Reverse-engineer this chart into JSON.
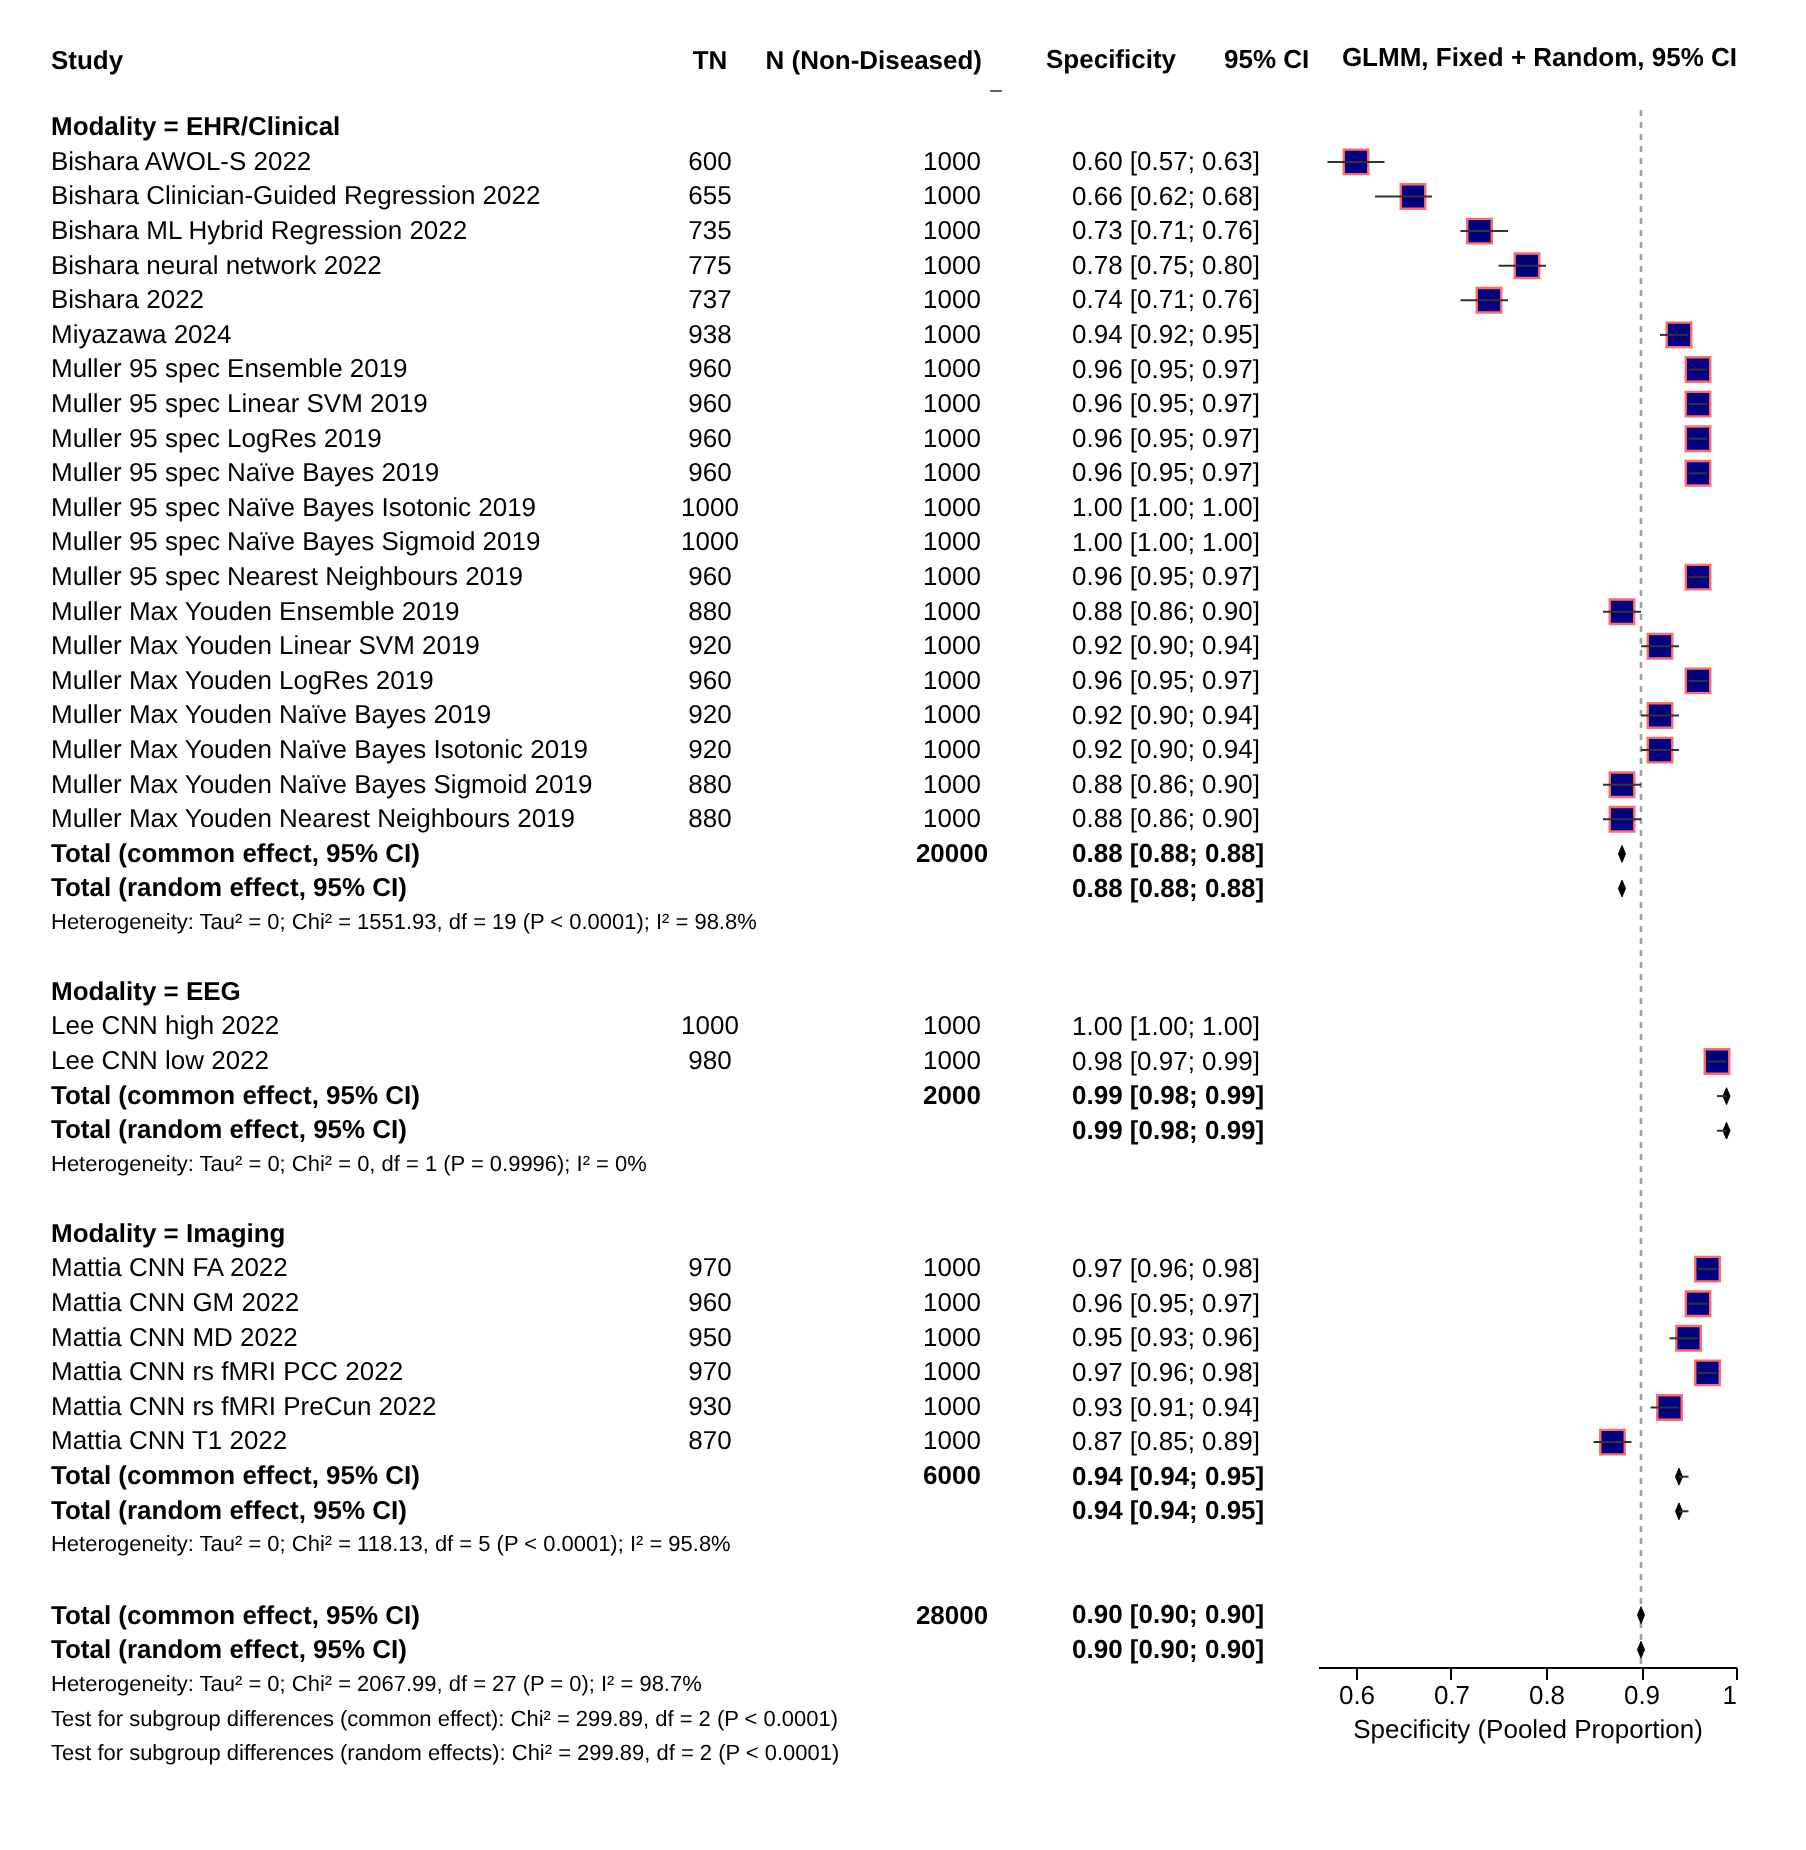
{
  "chart_data": [
    {
      "type": "heatmap",
      "data_labels": true,
      "ylabel": "Study",
      "categories": [
        "TN",
        "N (Non-Diseased)"
      ],
      "y_categories": [
        "Modality = EHR/Clinical",
        "Bishara AWOL-S 2022",
        "Bishara Clinician-Guided Regression 2022",
        "Bishara ML Hybrid Regression 2022",
        "Bishara neural network 2022",
        "Bishara 2022",
        "Miyazawa 2024",
        "Muller 95 spec Ensemble 2019",
        "Muller 95 spec Linear SVM 2019",
        "Muller 95 spec LogRes 2019",
        "Muller 95 spec Naïve Bayes 2019",
        "Muller 95 spec Naïve Bayes Isotonic 2019",
        "Muller 95 spec Naïve Bayes Sigmoid 2019",
        "Muller 95 spec Nearest Neighbours 2019",
        "Muller Max Youden Ensemble 2019",
        "Muller Max Youden Linear SVM 2019",
        "Muller Max Youden LogRes 2019",
        "Muller Max Youden Naïve Bayes 2019",
        "Muller Max Youden Naïve Bayes Isotonic 2019",
        "Muller Max Youden Naïve Bayes Sigmoid 2019",
        "Muller Max Youden Nearest Neighbours 2019",
        "Total (common effect, 95% CI)",
        "Total (random effect, 95% CI)",
        "Heterogeneity: Tau² = 0; Chi² = 1551.93, df = 19 (P < 0.0001); I² = 98.8%"
      ],
      "cells": [
        [
          null,
          null
        ],
        [
          600,
          1000
        ],
        [
          655,
          1000
        ],
        [
          735,
          1000
        ],
        [
          775,
          1000
        ],
        [
          737,
          1000
        ],
        [
          938,
          1000
        ],
        [
          960,
          1000
        ],
        [
          960,
          1000
        ],
        [
          960,
          1000
        ],
        [
          960,
          1000
        ],
        [
          1000,
          1000
        ],
        [
          1000,
          1000
        ],
        [
          960,
          1000
        ],
        [
          880,
          1000
        ],
        [
          920,
          1000
        ],
        [
          960,
          1000
        ],
        [
          920,
          1000
        ],
        [
          920,
          1000
        ],
        [
          880,
          1000
        ],
        [
          880,
          1000
        ],
        [
          null,
          20000
        ],
        [
          null,
          null
        ],
        [
          null,
          null
        ]
      ]
    },
    {
      "type": "heatmap",
      "data_labels": true,
      "categories": [
        null,
        null
      ],
      "tick_labels": "y",
      "y_categories": [
        "Modality = EEG",
        "Lee CNN high 2022",
        "Lee CNN low 2022",
        "Total (common effect, 95% CI)",
        "Total (random effect, 95% CI)",
        "Heterogeneity: Tau² = 0; Chi² = 0, df = 1 (P = 0.9996); I² = 0%"
      ],
      "cells": [
        [
          null,
          null
        ],
        [
          1000,
          1000
        ],
        [
          980,
          1000
        ],
        [
          null,
          2000
        ],
        [
          null,
          null
        ],
        [
          null,
          null
        ]
      ]
    },
    {
      "type": "heatmap",
      "data_labels": true,
      "categories": [
        null,
        null
      ],
      "tick_labels": "y",
      "y_categories": [
        "Modality = Imaging",
        "Mattia CNN FA 2022",
        "Mattia CNN GM 2022",
        "Mattia CNN MD 2022",
        "Mattia CNN rs fMRI PCC 2022",
        "Mattia CNN rs fMRI PreCun 2022",
        "Mattia CNN T1 2022",
        "Total (common effect, 95% CI)",
        "Total (random effect, 95% CI)",
        "Heterogeneity: Tau² = 0; Chi² = 118.13, df = 5 (P < 0.0001); I² = 95.8%"
      ],
      "cells": [
        [
          null,
          null
        ],
        [
          970,
          1000
        ],
        [
          960,
          1000
        ],
        [
          950,
          1000
        ],
        [
          970,
          1000
        ],
        [
          930,
          1000
        ],
        [
          870,
          1000
        ],
        [
          null,
          6000
        ],
        [
          null,
          null
        ],
        [
          null,
          null
        ]
      ]
    },
    {
      "type": "heatmap",
      "data_labels": true,
      "categories": [
        null,
        null
      ],
      "tick_labels": "y",
      "y_categories": [
        "Total (common effect, 95% CI)",
        "Total (random effect, 95% CI)",
        "Heterogeneity: Tau² = 0; Chi² = 2067.99, df = 27 (P = 0); I² = 98.7%",
        "Test for subgroup differences (common effect): Chi² = 299.89, df = 2 (P < 0.0001)",
        "Test for subgroup differences (random effects): Chi² = 299.89, df = 2 (P < 0.0001)"
      ],
      "cells": [
        [
          null,
          28000
        ],
        [
          null,
          null
        ],
        [
          null,
          null
        ],
        [
          null,
          null
        ],
        [
          null,
          null
        ]
      ]
    },
    {
      "type": "scatter",
      "orientation": "horizontal",
      "title": "GLMM, Fixed + Random, 95% CI",
      "xlabel": "Specificity (Pooled Proportion)",
      "tick_labels": "x",
      "annotations": [
        "Specificity",
        "95% CI"
      ],
      "categories": [
        null,
        null,
        null,
        null,
        null,
        null,
        null,
        null,
        null,
        null,
        null,
        null,
        null,
        null,
        null,
        null,
        null,
        null,
        null,
        null,
        null,
        null,
        null,
        null,
        null,
        null,
        null,
        null,
        null,
        null,
        null,
        null,
        null,
        null,
        null,
        null,
        null,
        null,
        null,
        null,
        null,
        null,
        null,
        null,
        null
      ],
      "value_labels": [
        null,
        "0.60 [0.57; 0.63]",
        "0.66 [0.62; 0.68]",
        "0.73 [0.71; 0.76]",
        "0.78 [0.75; 0.80]",
        "0.74 [0.71; 0.76]",
        "0.94 [0.92; 0.95]",
        "0.96 [0.95; 0.97]",
        "0.96 [0.95; 0.97]",
        "0.96 [0.95; 0.97]",
        "0.96 [0.95; 0.97]",
        "1.00 [1.00; 1.00]",
        "1.00 [1.00; 1.00]",
        "0.96 [0.95; 0.97]",
        "0.88 [0.86; 0.90]",
        "0.92 [0.90; 0.94]",
        "0.96 [0.95; 0.97]",
        "0.92 [0.90; 0.94]",
        "0.92 [0.90; 0.94]",
        "0.88 [0.86; 0.90]",
        "0.88 [0.86; 0.90]",
        "0.88 [0.88; 0.88]",
        "0.88 [0.88; 0.88]",
        null,
        null,
        null,
        "1.00 [1.00; 1.00]",
        "0.98 [0.97; 0.99]",
        "0.99 [0.98; 0.99]",
        "0.99 [0.98; 0.99]",
        null,
        null,
        null,
        "0.97 [0.96; 0.98]",
        "0.96 [0.95; 0.97]",
        "0.95 [0.93; 0.96]",
        "0.97 [0.96; 0.98]",
        "0.93 [0.91; 0.94]",
        "0.87 [0.85; 0.89]",
        "0.94 [0.94; 0.95]",
        "0.94 [0.94; 0.95]",
        null,
        null,
        "0.90 [0.90; 0.90]",
        "0.90 [0.90; 0.90]"
      ],
      "series": [
        {
          "color": "#000080",
          "marker": "square",
          "values": [
            null,
            0.6,
            0.66,
            0.73,
            0.78,
            0.74,
            0.94,
            0.96,
            0.96,
            0.96,
            0.96,
            null,
            null,
            0.96,
            0.88,
            0.92,
            0.96,
            0.92,
            0.92,
            0.88,
            0.88,
            null,
            null,
            null,
            null,
            null,
            null,
            0.98,
            null,
            null,
            null,
            null,
            null,
            0.97,
            0.96,
            0.95,
            0.97,
            0.93,
            0.87,
            null,
            null,
            null,
            null,
            null,
            null
          ],
          "errors": [
            null,
            [
              0.57,
              0.63
            ],
            [
              0.62,
              0.68
            ],
            [
              0.71,
              0.76
            ],
            [
              0.75,
              0.8
            ],
            [
              0.71,
              0.76
            ],
            [
              0.92,
              0.95
            ],
            [
              0.95,
              0.97
            ],
            [
              0.95,
              0.97
            ],
            [
              0.95,
              0.97
            ],
            [
              0.95,
              0.97
            ],
            null,
            null,
            [
              0.95,
              0.97
            ],
            [
              0.86,
              0.9
            ],
            [
              0.9,
              0.94
            ],
            [
              0.95,
              0.97
            ],
            [
              0.9,
              0.94
            ],
            [
              0.9,
              0.94
            ],
            [
              0.86,
              0.9
            ],
            [
              0.86,
              0.9
            ],
            null,
            null,
            null,
            null,
            null,
            null,
            [
              0.97,
              0.99
            ],
            null,
            null,
            null,
            null,
            null,
            [
              0.96,
              0.98
            ],
            [
              0.95,
              0.97
            ],
            [
              0.93,
              0.96
            ],
            [
              0.96,
              0.98
            ],
            [
              0.91,
              0.94
            ],
            [
              0.85,
              0.89
            ],
            null,
            null,
            null,
            null,
            null,
            null
          ]
        },
        {
          "color": "#000000",
          "marker": "diamond",
          "values": [
            null,
            null,
            null,
            null,
            null,
            null,
            null,
            null,
            null,
            null,
            null,
            null,
            null,
            null,
            null,
            null,
            null,
            null,
            null,
            null,
            null,
            0.88,
            0.88,
            null,
            null,
            null,
            null,
            null,
            0.99,
            0.99,
            null,
            null,
            null,
            null,
            null,
            null,
            null,
            null,
            null,
            0.94,
            0.94,
            null,
            null,
            0.9,
            0.9
          ],
          "errors": [
            null,
            null,
            null,
            null,
            null,
            null,
            null,
            null,
            null,
            null,
            null,
            null,
            null,
            null,
            null,
            null,
            null,
            null,
            null,
            null,
            null,
            [
              0.88,
              0.88
            ],
            [
              0.88,
              0.88
            ],
            null,
            null,
            null,
            null,
            null,
            [
              0.98,
              0.99
            ],
            [
              0.98,
              0.99
            ],
            null,
            null,
            null,
            null,
            null,
            null,
            null,
            null,
            null,
            [
              0.94,
              0.95
            ],
            [
              0.94,
              0.95
            ],
            null,
            null,
            [
              0.9,
              0.9
            ],
            [
              0.9,
              0.9
            ]
          ]
        }
      ],
      "xlim": [
        0.56,
        1
      ],
      "xticks": [
        0.6,
        0.7,
        0.8,
        0.9,
        1
      ],
      "ref_lines": [
        {
          "axis": "x",
          "value": 0.9,
          "color": "#a0a0a0",
          "line_style": "dotted"
        }
      ]
    }
  ]
}
